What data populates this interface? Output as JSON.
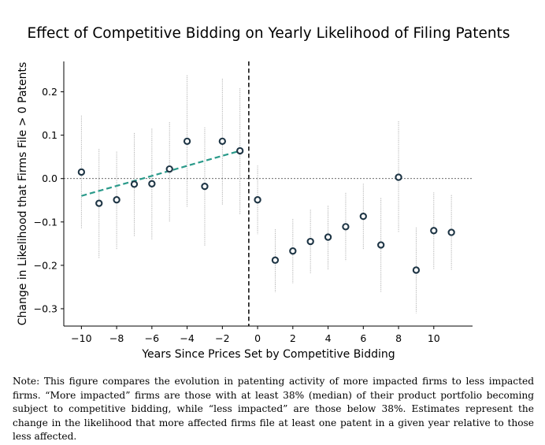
{
  "chart_data": {
    "type": "scatter",
    "title": "Effect of Competitive Bidding on Yearly Likelihood of Filing Patents",
    "xlabel": "Years Since Prices Set by Competitive Bidding",
    "ylabel": "Change in Likelihood that Firms File > 0 Patents",
    "xlim": [
      -11,
      12.2
    ],
    "ylim": [
      -0.34,
      0.27
    ],
    "xticks": [
      -10,
      -8,
      -6,
      -4,
      -2,
      0,
      2,
      4,
      6,
      8,
      10
    ],
    "xtick_labels": [
      "−10",
      "−8",
      "−6",
      "−4",
      "−2",
      "0",
      "2",
      "4",
      "6",
      "8",
      "10"
    ],
    "yticks": [
      0.2,
      0.1,
      0.0,
      -0.1,
      -0.2,
      -0.3
    ],
    "ytick_labels": [
      "0.2",
      "0.1",
      "0.0",
      "−0.1",
      "−0.2",
      "−0.3"
    ],
    "series": [
      {
        "points": [
          {
            "x": -10,
            "y": 0.015,
            "lo": -0.115,
            "hi": 0.145
          },
          {
            "x": -9,
            "y": -0.057,
            "lo": -0.185,
            "hi": 0.068
          },
          {
            "x": -8,
            "y": -0.049,
            "lo": -0.163,
            "hi": 0.062
          },
          {
            "x": -7,
            "y": -0.013,
            "lo": -0.133,
            "hi": 0.105
          },
          {
            "x": -6,
            "y": -0.012,
            "lo": -0.14,
            "hi": 0.115
          },
          {
            "x": -5,
            "y": 0.022,
            "lo": -0.1,
            "hi": 0.13
          },
          {
            "x": -4,
            "y": 0.086,
            "lo": -0.067,
            "hi": 0.238
          },
          {
            "x": -3,
            "y": -0.018,
            "lo": -0.155,
            "hi": 0.118
          },
          {
            "x": -2,
            "y": 0.086,
            "lo": -0.06,
            "hi": 0.23
          },
          {
            "x": -1,
            "y": 0.064,
            "lo": -0.083,
            "hi": 0.208
          },
          {
            "x": 0,
            "y": -0.049,
            "lo": -0.128,
            "hi": 0.03
          },
          {
            "x": 1,
            "y": -0.188,
            "lo": -0.262,
            "hi": -0.117
          },
          {
            "x": 2,
            "y": -0.167,
            "lo": -0.242,
            "hi": -0.093
          },
          {
            "x": 3,
            "y": -0.145,
            "lo": -0.22,
            "hi": -0.072
          },
          {
            "x": 4,
            "y": -0.135,
            "lo": -0.21,
            "hi": -0.063
          },
          {
            "x": 5,
            "y": -0.111,
            "lo": -0.19,
            "hi": -0.033
          },
          {
            "x": 6,
            "y": -0.087,
            "lo": -0.163,
            "hi": -0.012
          },
          {
            "x": 7,
            "y": -0.153,
            "lo": -0.263,
            "hi": -0.045
          },
          {
            "x": 8,
            "y": 0.003,
            "lo": -0.123,
            "hi": 0.132
          },
          {
            "x": 9,
            "y": -0.211,
            "lo": -0.31,
            "hi": -0.113
          },
          {
            "x": 10,
            "y": -0.12,
            "lo": -0.21,
            "hi": -0.032
          },
          {
            "x": 11,
            "y": -0.124,
            "lo": -0.21,
            "hi": -0.038
          }
        ],
        "marker_stroke": "#1e3545",
        "errorbar_color": "#aaaaaa"
      }
    ],
    "trend_line": {
      "x": [
        -10,
        -1
      ],
      "y": [
        -0.04,
        0.064
      ],
      "color": "#2a9a8a",
      "style": "dashed"
    },
    "reference_lines": [
      {
        "axis": "x",
        "value": -0.5,
        "style": "dashed",
        "color": "#000000"
      },
      {
        "axis": "y",
        "value": 0,
        "style": "dotted",
        "color": "#555555"
      }
    ],
    "grid": false
  },
  "note": "Note: This figure compares the evolution in patenting activity of more impacted firms to less impacted firms. “More impacted” firms are those with at least 38% (median) of their product portfolio becoming subject to competitive bidding, while “less impacted” are those below 38%. Estimates represent the change in the likelihood that more affected firms file at least one patent in a given year relative to those less affected."
}
